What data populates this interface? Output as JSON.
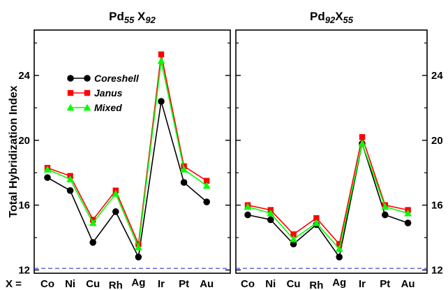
{
  "chart_data": [
    {
      "type": "line",
      "title_main": "Pd",
      "title_sub1": "55",
      "title_mid": " X",
      "title_sub2": "92",
      "ylabel": "Total Hybridization Index",
      "xprefix": "X =",
      "categories": [
        "Co",
        "Ni",
        "Cu",
        "Rh",
        "Ag",
        "Ir",
        "Pt",
        "Au"
      ],
      "ylim": [
        11.8,
        26.8
      ],
      "yticks": [
        12,
        16,
        20,
        24
      ],
      "yaxis_labels": "left",
      "reference_line": 12.1,
      "legend": "top-left",
      "series": [
        {
          "name": "Coreshell",
          "color": "#000000",
          "marker": "circle",
          "values": [
            17.7,
            16.9,
            13.7,
            15.6,
            12.8,
            22.4,
            17.4,
            16.2
          ]
        },
        {
          "name": "Janus",
          "color": "#ff0000",
          "marker": "square",
          "values": [
            18.3,
            17.8,
            15.1,
            16.9,
            13.6,
            25.3,
            18.4,
            17.5
          ]
        },
        {
          "name": "Mixed",
          "color": "#00ff00",
          "marker": "triangle",
          "values": [
            18.2,
            17.6,
            14.9,
            16.7,
            13.4,
            24.9,
            18.2,
            17.2
          ]
        }
      ]
    },
    {
      "type": "line",
      "title_main": "Pd",
      "title_sub1": "92",
      "title_mid": "X",
      "title_sub2": "55",
      "categories": [
        "Co",
        "Ni",
        "Cu",
        "Rh",
        "Ag",
        "Ir",
        "Pt",
        "Au"
      ],
      "ylim": [
        11.8,
        26.8
      ],
      "yticks": [
        12,
        16,
        20,
        24
      ],
      "yaxis_labels": "right",
      "reference_line": 12.1,
      "series": [
        {
          "name": "Coreshell",
          "color": "#000000",
          "marker": "circle",
          "values": [
            15.4,
            15.1,
            13.6,
            14.8,
            12.8,
            19.8,
            15.4,
            14.9
          ]
        },
        {
          "name": "Janus",
          "color": "#ff0000",
          "marker": "square",
          "values": [
            16.0,
            15.7,
            14.2,
            15.2,
            13.6,
            20.2,
            16.0,
            15.7
          ]
        },
        {
          "name": "Mixed",
          "color": "#00ff00",
          "marker": "triangle",
          "values": [
            15.9,
            15.5,
            13.9,
            14.9,
            13.3,
            19.8,
            15.9,
            15.5
          ]
        }
      ]
    }
  ]
}
